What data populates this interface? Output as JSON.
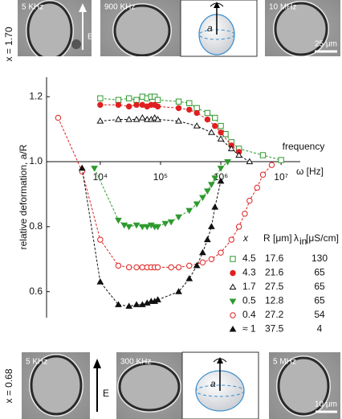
{
  "panels": {
    "top": {
      "label": "x = 1.70",
      "images": [
        "5 KHz",
        "900 KHz",
        "10 MHz"
      ],
      "field": "E",
      "axis": "a",
      "scale": "25 μm"
    },
    "bottom": {
      "label": "x = 0.68",
      "images": [
        "5 KHz",
        "300 KHz",
        "5 MHz"
      ],
      "field": "E",
      "axis": "a",
      "scale": "10 μm"
    }
  },
  "chart_data": {
    "type": "scatter",
    "ylabel": "relative deformation, a/R",
    "xlabel": [
      "frequency",
      "ω [Hz]"
    ],
    "log_x": true,
    "xaxis_crosses": 1,
    "xlim": [
      1500,
      25000000
    ],
    "xticks": [
      {
        "value": 10000,
        "label": "10⁴"
      },
      {
        "value": 100000,
        "label": "10⁵"
      },
      {
        "value": 1000000,
        "label": "10⁶"
      },
      {
        "value": 10000000,
        "label": "10⁷"
      }
    ],
    "ylim": [
      0.52,
      1.26
    ],
    "yticks": [
      0.6,
      0.8,
      {
        "value": 1,
        "label": "1.0"
      },
      1.2
    ],
    "legend": {
      "headers": [
        "x",
        "R [μm]",
        "λ",
        "in",
        "[μS/cm]"
      ]
    },
    "series": [
      {
        "name": "4.5",
        "R": "17.6",
        "lambda": "130",
        "color": "#2e9a2e",
        "marker": "square",
        "filled": false,
        "x": [
          10000,
          20000,
          30000,
          40000,
          50000,
          60000,
          70000,
          80000,
          90000,
          200000,
          300000,
          400000,
          600000,
          800000,
          1000000,
          1200000,
          1500000,
          2000000,
          5000000,
          10000000
        ],
        "values": [
          1.195,
          1.19,
          1.195,
          1.19,
          1.2,
          1.195,
          1.2,
          1.2,
          1.19,
          1.185,
          1.18,
          1.165,
          1.15,
          1.135,
          1.11,
          1.085,
          1.06,
          1.04,
          1.02,
          1.005
        ]
      },
      {
        "name": "4.3",
        "R": "21.6",
        "lambda": "65",
        "color": "#e02020",
        "marker": "circle",
        "filled": true,
        "x": [
          10000,
          20000,
          30000,
          40000,
          50000,
          60000,
          70000,
          80000,
          90000,
          200000,
          300000,
          400000,
          600000,
          800000,
          1000000,
          1500000,
          2000000
        ],
        "values": [
          1.175,
          1.175,
          1.17,
          1.175,
          1.175,
          1.17,
          1.175,
          1.175,
          1.17,
          1.165,
          1.16,
          1.15,
          1.13,
          1.11,
          1.09,
          1.05,
          1.03
        ]
      },
      {
        "name": "1.7",
        "R": "27.5",
        "lambda": "65",
        "color": "#111111",
        "marker": "triangle",
        "filled": false,
        "x": [
          10000,
          20000,
          30000,
          40000,
          50000,
          60000,
          70000,
          80000,
          90000,
          200000,
          400000,
          700000,
          1000000,
          1500000,
          2000000,
          3000000
        ],
        "values": [
          1.125,
          1.13,
          1.13,
          1.13,
          1.135,
          1.13,
          1.13,
          1.135,
          1.13,
          1.125,
          1.11,
          1.09,
          1.07,
          1.04,
          1.02,
          1.0
        ]
      },
      {
        "name": "0.5",
        "R": "12.8",
        "lambda": "65",
        "color": "#2e9a2e",
        "marker": "triangle-down",
        "filled": true,
        "x": [
          8000,
          20000,
          25000,
          30000,
          40000,
          50000,
          60000,
          70000,
          80000,
          90000,
          120000,
          150000,
          200000,
          300000,
          400000,
          500000,
          600000,
          700000,
          800000,
          1000000,
          1300000
        ],
        "values": [
          0.98,
          0.82,
          0.805,
          0.8,
          0.805,
          0.8,
          0.8,
          0.805,
          0.8,
          0.8,
          0.81,
          0.815,
          0.83,
          0.85,
          0.87,
          0.89,
          0.91,
          0.93,
          0.95,
          0.98,
          1.0
        ]
      },
      {
        "name": "0.4",
        "R": "27.2",
        "lambda": "54",
        "color": "#e02020",
        "marker": "circle",
        "filled": false,
        "x": [
          2000,
          5000,
          10000,
          20000,
          30000,
          40000,
          50000,
          60000,
          70000,
          80000,
          90000,
          150000,
          200000,
          300000,
          500000,
          700000,
          1000000,
          1500000,
          2000000,
          2500000,
          3000000,
          4000000,
          5000000,
          7000000
        ],
        "values": [
          1.135,
          0.97,
          0.76,
          0.68,
          0.675,
          0.675,
          0.675,
          0.675,
          0.675,
          0.675,
          0.675,
          0.675,
          0.675,
          0.68,
          0.69,
          0.7,
          0.72,
          0.76,
          0.8,
          0.84,
          0.88,
          0.92,
          0.96,
          0.99
        ]
      },
      {
        "name": "≈ 1",
        "R": "37.5",
        "lambda": "4",
        "color": "#111111",
        "marker": "triangle",
        "filled": true,
        "x": [
          5000,
          10000,
          20000,
          30000,
          40000,
          50000,
          60000,
          70000,
          80000,
          90000,
          200000,
          300000,
          400000,
          500000,
          600000,
          700000,
          800000,
          1000000
        ],
        "values": [
          0.98,
          0.63,
          0.56,
          0.555,
          0.56,
          0.56,
          0.565,
          0.57,
          0.57,
          0.575,
          0.6,
          0.64,
          0.68,
          0.72,
          0.76,
          0.8,
          0.86,
          0.94
        ]
      }
    ]
  }
}
